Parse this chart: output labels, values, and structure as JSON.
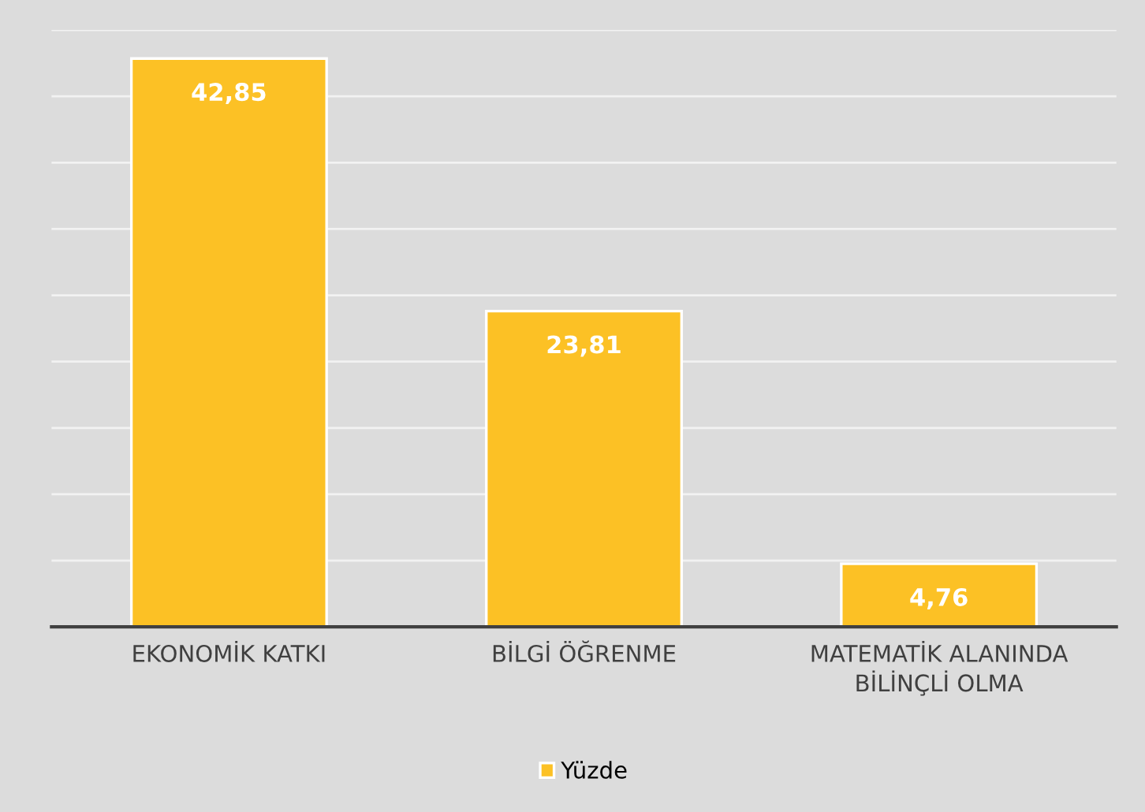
{
  "chart_data": {
    "type": "bar",
    "categories": [
      "EKONOMİK KATKI",
      "BİLGİ ÖĞRENME",
      "MATEMATİK ALANINDA\nBİLİNÇLİ OLMA"
    ],
    "series": [
      {
        "name": "Yüzde",
        "color": "#fcc125",
        "values": [
          42.85,
          23.81,
          4.76
        ],
        "value_labels": [
          "42,85",
          "23,81",
          "4,76"
        ]
      }
    ],
    "ylim": [
      0,
      45
    ],
    "yticks": [
      {
        "value": 0,
        "label": null
      },
      {
        "value": 5,
        "label": null
      },
      {
        "value": 10,
        "label": null
      },
      {
        "value": 15,
        "label": null
      },
      {
        "value": 20,
        "label": null
      },
      {
        "value": 25,
        "label": null
      },
      {
        "value": 30,
        "label": null
      },
      {
        "value": 35,
        "label": null
      },
      {
        "value": 40,
        "label": null
      },
      {
        "value": 45,
        "label": null
      }
    ],
    "tick_labels": "x",
    "grid": "y",
    "legend": "bottom"
  }
}
